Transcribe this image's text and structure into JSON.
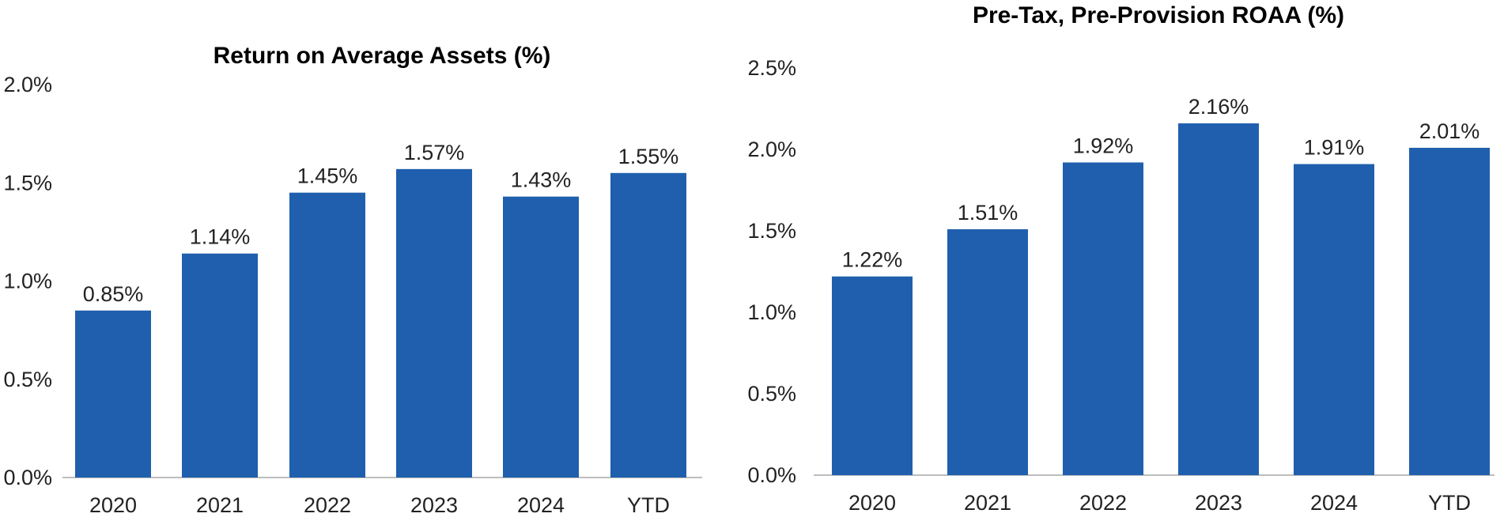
{
  "chart_data": [
    {
      "type": "bar",
      "title": "Return on Average Assets (%)",
      "categories": [
        "2020",
        "2021",
        "2022",
        "2023",
        "2024",
        "YTD"
      ],
      "values": [
        0.85,
        1.14,
        1.45,
        1.57,
        1.43,
        1.55
      ],
      "data_labels": [
        "0.85%",
        "1.14%",
        "1.45%",
        "1.57%",
        "1.43%",
        "1.55%"
      ],
      "yticks": [
        "0.0%",
        "0.5%",
        "1.0%",
        "1.5%",
        "2.0%"
      ],
      "ytick_values": [
        0,
        0.5,
        1.0,
        1.5,
        2.0
      ],
      "ylim": [
        0,
        2.0
      ],
      "grid": false,
      "legend": "none",
      "bar_color": "#1f5fad"
    },
    {
      "type": "bar",
      "title": "Pre-Tax, Pre-Provision ROAA (%)",
      "categories": [
        "2020",
        "2021",
        "2022",
        "2023",
        "2024",
        "YTD"
      ],
      "values": [
        1.22,
        1.51,
        1.92,
        2.16,
        1.91,
        2.01
      ],
      "data_labels": [
        "1.22%",
        "1.51%",
        "1.92%",
        "2.16%",
        "1.91%",
        "2.01%"
      ],
      "yticks": [
        "0.0%",
        "0.5%",
        "1.0%",
        "1.5%",
        "2.0%",
        "2.5%"
      ],
      "ytick_values": [
        0,
        0.5,
        1.0,
        1.5,
        2.0,
        2.5
      ],
      "ylim": [
        0,
        2.5
      ],
      "grid": false,
      "legend": "none",
      "bar_color": "#1f5fad"
    }
  ]
}
